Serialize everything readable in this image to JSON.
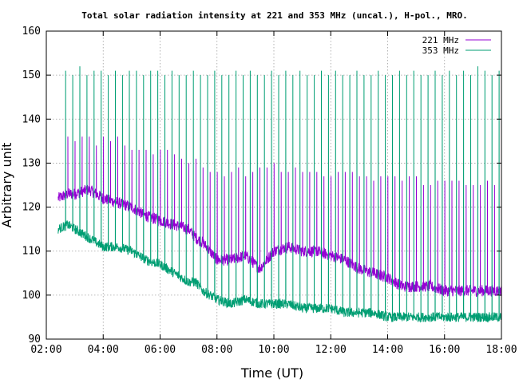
{
  "chart_data": {
    "type": "line",
    "title": "Total solar radiation intensity at 221 and 353 MHz (uncal.), H-pol., MRO.",
    "xlabel": "Time (UT)",
    "ylabel": "Arbitrary unit",
    "xlim": [
      "02:00",
      "18:00"
    ],
    "ylim": [
      90,
      160
    ],
    "xticks": [
      "02:00",
      "04:00",
      "06:00",
      "08:00",
      "10:00",
      "12:00",
      "14:00",
      "16:00",
      "18:00"
    ],
    "yticks": [
      90,
      100,
      110,
      120,
      130,
      140,
      150,
      160
    ],
    "grid": true,
    "legend_position": "top-right",
    "series": [
      {
        "name": "221 MHz",
        "color": "#9400d3",
        "x": [
          "02:25",
          "02:45",
          "03:00",
          "03:30",
          "04:00",
          "04:30",
          "05:00",
          "05:30",
          "06:00",
          "06:30",
          "07:00",
          "07:15",
          "07:30",
          "08:00",
          "08:30",
          "09:00",
          "09:30",
          "10:00",
          "10:30",
          "11:00",
          "11:30",
          "12:00",
          "12:30",
          "13:00",
          "13:30",
          "14:00",
          "14:30",
          "15:00",
          "15:30",
          "16:00",
          "16:30",
          "17:00",
          "17:30",
          "18:00"
        ],
        "y": [
          122,
          123,
          123,
          124,
          122,
          121,
          120,
          118,
          117,
          116,
          115,
          113,
          112,
          108,
          108,
          109,
          106,
          110,
          111,
          110,
          110,
          109,
          108,
          106,
          105,
          104,
          102,
          102,
          102,
          101,
          101,
          101,
          101,
          101
        ]
      },
      {
        "name": "353 MHz",
        "color": "#009e73",
        "x": [
          "02:25",
          "02:45",
          "03:00",
          "03:30",
          "04:00",
          "04:30",
          "05:00",
          "05:30",
          "06:00",
          "06:30",
          "07:00",
          "07:15",
          "07:30",
          "08:00",
          "08:30",
          "09:00",
          "09:30",
          "10:00",
          "10:30",
          "11:00",
          "11:30",
          "12:00",
          "12:30",
          "13:00",
          "13:30",
          "14:00",
          "14:30",
          "15:00",
          "15:30",
          "16:00",
          "16:30",
          "17:00",
          "17:30",
          "18:00"
        ],
        "y": [
          115,
          116,
          115,
          113,
          111,
          111,
          110,
          108,
          107,
          105,
          103,
          103,
          101,
          99,
          98,
          99,
          98,
          98,
          98,
          97,
          97,
          97,
          96,
          96,
          96,
          95,
          95,
          95,
          95,
          95,
          95,
          95,
          95,
          95
        ]
      }
    ],
    "spikes": {
      "221 MHz": {
        "times": [
          "02:45",
          "03:00",
          "03:15",
          "03:30",
          "03:45",
          "04:00",
          "04:15",
          "04:30",
          "04:45",
          "05:00",
          "05:15",
          "05:30",
          "05:45",
          "06:00",
          "06:15",
          "06:30",
          "06:45",
          "07:00",
          "07:15",
          "07:30",
          "07:45",
          "08:00",
          "08:15",
          "08:30",
          "08:45",
          "09:00",
          "09:15",
          "09:30",
          "09:45",
          "10:00",
          "10:15",
          "10:30",
          "10:45",
          "11:00",
          "11:15",
          "11:30",
          "11:45",
          "12:00",
          "12:15",
          "12:30",
          "12:45",
          "13:00",
          "13:15",
          "13:30",
          "13:45",
          "14:00",
          "14:15",
          "14:30",
          "14:45",
          "15:00",
          "15:15",
          "15:30",
          "15:45",
          "16:00",
          "16:15",
          "16:30",
          "16:45",
          "17:00",
          "17:15",
          "17:30",
          "17:45"
        ],
        "peaks": [
          136,
          135,
          136,
          136,
          134,
          136,
          135,
          136,
          134,
          133,
          133,
          133,
          132,
          133,
          133,
          132,
          131,
          130,
          131,
          129,
          128,
          128,
          127,
          128,
          129,
          127,
          128,
          129,
          129,
          130,
          128,
          128,
          129,
          128,
          128,
          128,
          127,
          127,
          128,
          128,
          128,
          127,
          127,
          126,
          127,
          127,
          127,
          126,
          127,
          127,
          125,
          125,
          126,
          126,
          126,
          126,
          125,
          125,
          125,
          126,
          125
        ]
      },
      "353 MHz": {
        "times": [
          "02:40",
          "02:55",
          "03:10",
          "03:25",
          "03:40",
          "03:55",
          "04:10",
          "04:25",
          "04:40",
          "04:55",
          "05:10",
          "05:25",
          "05:40",
          "05:55",
          "06:10",
          "06:25",
          "06:40",
          "06:55",
          "07:10",
          "07:25",
          "07:40",
          "07:55",
          "08:10",
          "08:25",
          "08:40",
          "08:55",
          "09:10",
          "09:25",
          "09:40",
          "09:55",
          "10:10",
          "10:25",
          "10:40",
          "10:55",
          "11:10",
          "11:25",
          "11:40",
          "11:55",
          "12:10",
          "12:25",
          "12:40",
          "12:55",
          "13:10",
          "13:25",
          "13:40",
          "13:55",
          "14:10",
          "14:25",
          "14:40",
          "14:55",
          "15:10",
          "15:25",
          "15:40",
          "15:55",
          "16:10",
          "16:25",
          "16:40",
          "16:55",
          "17:10",
          "17:25",
          "17:40",
          "17:55"
        ],
        "peaks": [
          151,
          150,
          152,
          150,
          151,
          151,
          150,
          151,
          150,
          151,
          151,
          150,
          151,
          151,
          150,
          151,
          150,
          150,
          151,
          150,
          150,
          151,
          150,
          150,
          151,
          150,
          151,
          150,
          150,
          151,
          150,
          151,
          150,
          151,
          150,
          150,
          151,
          150,
          151,
          150,
          150,
          151,
          150,
          150,
          151,
          150,
          150,
          151,
          150,
          151,
          150,
          150,
          151,
          150,
          151,
          150,
          151,
          150,
          152,
          151,
          150,
          151
        ]
      }
    }
  }
}
